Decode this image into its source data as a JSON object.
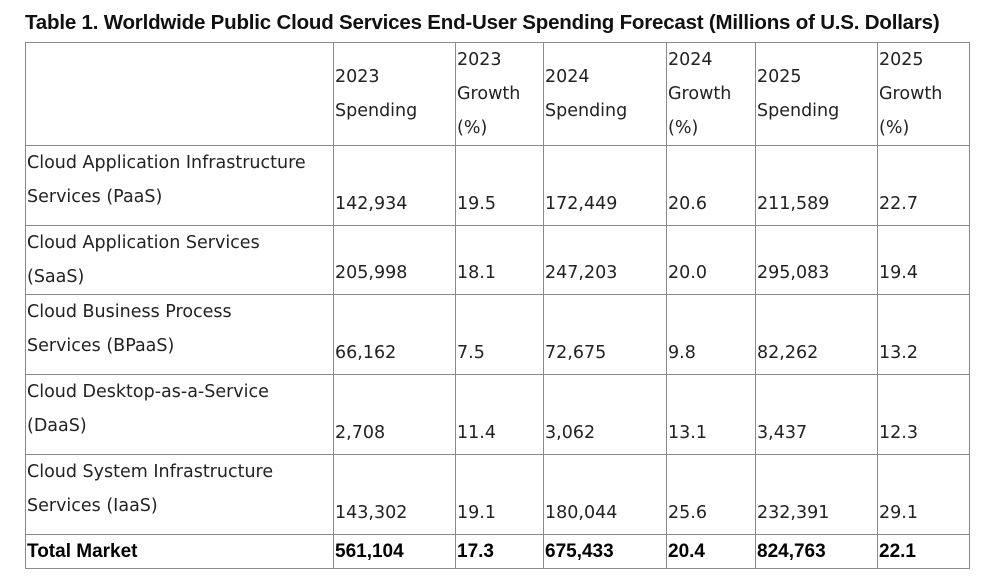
{
  "title": "Table 1. Worldwide Public Cloud Services End-User Spending Forecast (Millions of U.S. Dollars)",
  "headers": [
    "",
    [
      "2023",
      "Spending"
    ],
    [
      "2023",
      "Growth",
      "(%)"
    ],
    [
      "2024",
      "Spending"
    ],
    [
      "2024",
      "Growth",
      "(%)"
    ],
    [
      "2025",
      "Spending"
    ],
    [
      "2025",
      "Growth",
      "(%)"
    ]
  ],
  "rows": [
    {
      "label": [
        "Cloud Application Infrastructure",
        "Services (PaaS)"
      ],
      "values": [
        "142,934",
        "19.5",
        "172,449",
        "20.6",
        "211,589",
        "22.7"
      ]
    },
    {
      "label": [
        "Cloud Application Services",
        "(SaaS)"
      ],
      "values": [
        "205,998",
        "18.1",
        "247,203",
        "20.0",
        "295,083",
        "19.4"
      ]
    },
    {
      "label": [
        "Cloud Business Process",
        "Services (BPaaS)"
      ],
      "values": [
        "66,162",
        "7.5",
        "72,675",
        "9.8",
        "82,262",
        "13.2"
      ]
    },
    {
      "label": [
        "Cloud Desktop-as-a-Service",
        "(DaaS)"
      ],
      "values": [
        "2,708",
        "11.4",
        "3,062",
        "13.1",
        "3,437",
        "12.3"
      ]
    },
    {
      "label": [
        "Cloud System Infrastructure",
        "Services (IaaS)"
      ],
      "values": [
        "143,302",
        "19.1",
        "180,044",
        "25.6",
        "232,391",
        "29.1"
      ]
    }
  ],
  "total": {
    "label": "Total Market",
    "values": [
      "561,104",
      "17.3",
      "675,433",
      "20.4",
      "824,763",
      "22.1"
    ]
  }
}
